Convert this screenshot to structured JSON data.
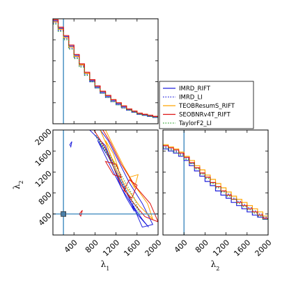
{
  "chart_data": [
    {
      "type": "line",
      "panel": "marginal-lambda1",
      "xlabel": "",
      "ylabel": "",
      "xlim": [
        0,
        2000
      ],
      "ylim": [
        0,
        1
      ],
      "injection_x": 200,
      "bin_edges": [
        0,
        100,
        200,
        300,
        400,
        500,
        600,
        700,
        800,
        900,
        1000,
        1100,
        1200,
        1300,
        1400,
        1500,
        1600,
        1700,
        1800,
        1900,
        2000
      ],
      "series": [
        {
          "name": "IMRD_RIFT",
          "color": "#1f1fdd",
          "dash": "solid",
          "values": [
            0.98,
            0.91,
            0.83,
            0.74,
            0.65,
            0.56,
            0.48,
            0.41,
            0.35,
            0.3,
            0.26,
            0.22,
            0.19,
            0.16,
            0.13,
            0.11,
            0.09,
            0.08,
            0.07,
            0.06
          ]
        },
        {
          "name": "IMRD_LI",
          "color": "#1f1fdd",
          "dash": "dotted",
          "values": [
            0.96,
            0.89,
            0.81,
            0.72,
            0.63,
            0.55,
            0.47,
            0.4,
            0.34,
            0.29,
            0.25,
            0.21,
            0.18,
            0.15,
            0.13,
            0.11,
            0.09,
            0.08,
            0.07,
            0.06
          ]
        },
        {
          "name": "TEOBResumS_RIFT",
          "color": "#ffa500",
          "dash": "solid",
          "values": [
            0.97,
            0.9,
            0.82,
            0.73,
            0.64,
            0.56,
            0.48,
            0.42,
            0.36,
            0.31,
            0.27,
            0.23,
            0.2,
            0.17,
            0.14,
            0.12,
            0.1,
            0.09,
            0.08,
            0.07
          ]
        },
        {
          "name": "SEOBNRv4T_RIFT",
          "color": "#dd1111",
          "dash": "solid",
          "values": [
            0.99,
            0.92,
            0.84,
            0.75,
            0.66,
            0.57,
            0.49,
            0.42,
            0.36,
            0.31,
            0.27,
            0.23,
            0.2,
            0.17,
            0.14,
            0.12,
            0.1,
            0.09,
            0.08,
            0.07
          ]
        },
        {
          "name": "TaylorF2_LI",
          "color": "#2ca02c",
          "dash": "dotted",
          "values": [
            0.95,
            0.88,
            0.8,
            0.71,
            0.62,
            0.54,
            0.46,
            0.4,
            0.34,
            0.29,
            0.25,
            0.21,
            0.18,
            0.15,
            0.13,
            0.11,
            0.09,
            0.08,
            0.07,
            0.06
          ]
        }
      ]
    },
    {
      "type": "line",
      "panel": "marginal-lambda2",
      "xlabel": "λ2",
      "ylabel": "",
      "xlim": [
        0,
        2000
      ],
      "ylim": [
        0,
        1
      ],
      "xticks": [
        400,
        800,
        1200,
        1600,
        2000
      ],
      "injection_x": 400,
      "bin_edges": [
        0,
        100,
        200,
        300,
        400,
        500,
        600,
        700,
        800,
        900,
        1000,
        1100,
        1200,
        1300,
        1400,
        1500,
        1600,
        1700,
        1800,
        1900,
        2000
      ],
      "series": [
        {
          "name": "IMRD_RIFT",
          "color": "#1f1fdd",
          "dash": "solid",
          "values": [
            0.82,
            0.8,
            0.78,
            0.75,
            0.71,
            0.66,
            0.61,
            0.56,
            0.51,
            0.47,
            0.42,
            0.38,
            0.35,
            0.31,
            0.28,
            0.25,
            0.22,
            0.19,
            0.17,
            0.15
          ]
        },
        {
          "name": "IMRD_LI",
          "color": "#1f1fdd",
          "dash": "dotted",
          "values": [
            0.84,
            0.82,
            0.8,
            0.77,
            0.73,
            0.68,
            0.64,
            0.59,
            0.55,
            0.5,
            0.46,
            0.42,
            0.39,
            0.35,
            0.32,
            0.29,
            0.26,
            0.23,
            0.2,
            0.17
          ]
        },
        {
          "name": "TEOBResumS_RIFT",
          "color": "#ffa500",
          "dash": "solid",
          "values": [
            0.86,
            0.84,
            0.82,
            0.79,
            0.75,
            0.71,
            0.66,
            0.62,
            0.57,
            0.53,
            0.49,
            0.45,
            0.41,
            0.37,
            0.34,
            0.31,
            0.28,
            0.25,
            0.22,
            0.18
          ]
        },
        {
          "name": "SEOBNRv4T_RIFT",
          "color": "#dd1111",
          "dash": "solid",
          "values": [
            0.85,
            0.83,
            0.81,
            0.78,
            0.74,
            0.69,
            0.64,
            0.59,
            0.55,
            0.5,
            0.46,
            0.42,
            0.38,
            0.34,
            0.31,
            0.28,
            0.25,
            0.22,
            0.19,
            0.16
          ]
        },
        {
          "name": "TaylorF2_LI",
          "color": "#2ca02c",
          "dash": "dotted",
          "values": [
            0.83,
            0.81,
            0.79,
            0.76,
            0.72,
            0.68,
            0.63,
            0.58,
            0.54,
            0.49,
            0.45,
            0.41,
            0.37,
            0.34,
            0.3,
            0.27,
            0.24,
            0.21,
            0.18,
            0.15
          ]
        }
      ]
    },
    {
      "type": "scatter",
      "panel": "joint-lambda1-lambda2",
      "xlabel": "λ1",
      "ylabel": "λ2",
      "xlim": [
        0,
        2000
      ],
      "ylim": [
        0,
        2000
      ],
      "xticks": [
        400,
        800,
        1200,
        1600,
        2000
      ],
      "yticks": [
        400,
        800,
        1200,
        1600,
        2000
      ],
      "injection": [
        200,
        400
      ],
      "series": [
        {
          "name": "IMRD_RIFT",
          "color": "#1f1fdd",
          "contours": [
            [
              [
                700,
                2000
              ],
              [
                1000,
                1700
              ],
              [
                1150,
                1300
              ],
              [
                1300,
                900
              ],
              [
                1550,
                500
              ],
              [
                1700,
                150
              ],
              [
                1900,
                200
              ],
              [
                1700,
                600
              ],
              [
                1450,
                1000
              ],
              [
                1250,
                1400
              ],
              [
                1050,
                1800
              ],
              [
                900,
                2000
              ]
            ],
            [
              [
                850,
                1800
              ],
              [
                1000,
                1500
              ],
              [
                1200,
                1100
              ],
              [
                1400,
                700
              ],
              [
                1550,
                450
              ],
              [
                1450,
                700
              ],
              [
                1250,
                1100
              ],
              [
                1050,
                1500
              ]
            ],
            [
              [
                1480,
                620
              ],
              [
                1700,
                300
              ],
              [
                1820,
                150
              ],
              [
                1600,
                400
              ]
            ],
            [
              [
                320,
                1720
              ],
              [
                360,
                1780
              ],
              [
                340,
                1680
              ]
            ]
          ]
        },
        {
          "name": "IMRD_LI",
          "color": "#1f1fdd",
          "dash": "dotted",
          "contours": [
            [
              [
                800,
                1900
              ],
              [
                1050,
                1550
              ],
              [
                1250,
                1150
              ],
              [
                1450,
                750
              ],
              [
                1600,
                400
              ],
              [
                1500,
                650
              ],
              [
                1300,
                1050
              ],
              [
                1100,
                1450
              ]
            ]
          ]
        },
        {
          "name": "TEOBResumS_RIFT",
          "color": "#ffa500",
          "contours": [
            [
              [
                900,
                2000
              ],
              [
                1050,
                1650
              ],
              [
                1200,
                1250
              ],
              [
                1400,
                900
              ],
              [
                1650,
                550
              ],
              [
                1900,
                300
              ],
              [
                1800,
                600
              ],
              [
                1550,
                950
              ],
              [
                1350,
                1300
              ],
              [
                1150,
                1700
              ],
              [
                1000,
                2000
              ]
            ],
            [
              [
                1000,
                1800
              ],
              [
                1100,
                1500
              ],
              [
                1250,
                1250
              ],
              [
                1150,
                1550
              ]
            ],
            [
              [
                1450,
                1100
              ],
              [
                1550,
                900
              ],
              [
                1620,
                1150
              ]
            ]
          ]
        },
        {
          "name": "SEOBNRv4T_RIFT",
          "color": "#dd1111",
          "contours": [
            [
              [
                780,
                2000
              ],
              [
                1000,
                1650
              ],
              [
                1150,
                1300
              ],
              [
                1300,
                950
              ],
              [
                1500,
                650
              ],
              [
                1750,
                350
              ],
              [
                2000,
                250
              ],
              [
                1850,
                600
              ],
              [
                1550,
                950
              ],
              [
                1300,
                1350
              ],
              [
                1100,
                1750
              ],
              [
                950,
                2000
              ]
            ],
            [
              [
                1000,
                1400
              ],
              [
                1150,
                1150
              ],
              [
                1300,
                1100
              ],
              [
                1200,
                1350
              ]
            ],
            [
              [
                1350,
                850
              ],
              [
                1500,
                700
              ],
              [
                1600,
                950
              ],
              [
                1450,
                1050
              ]
            ],
            [
              [
                500,
                400
              ],
              [
                560,
                470
              ],
              [
                530,
                360
              ]
            ]
          ]
        },
        {
          "name": "TaylorF2_LI",
          "color": "#2ca02c",
          "dash": "dotted",
          "contours": [
            [
              [
                820,
                1900
              ],
              [
                1050,
                1500
              ],
              [
                1250,
                1100
              ],
              [
                1450,
                750
              ],
              [
                1650,
                420
              ],
              [
                1550,
                700
              ],
              [
                1350,
                1050
              ],
              [
                1120,
                1450
              ]
            ]
          ]
        }
      ]
    }
  ],
  "legend": {
    "placement": "right of top panel",
    "items": [
      {
        "label": "IMRD_RIFT",
        "color": "#1f1fdd",
        "dash": "solid"
      },
      {
        "label": "IMRD_LI",
        "color": "#1f1fdd",
        "dash": "dotted"
      },
      {
        "label": "TEOBResumS_RIFT",
        "color": "#ffa500",
        "dash": "solid"
      },
      {
        "label": "SEOBNRv4T_RIFT",
        "color": "#dd1111",
        "dash": "solid"
      },
      {
        "label": "TaylorF2_LI",
        "color": "#2ca02c",
        "dash": "dotted"
      }
    ]
  },
  "injection_color": "#1f77b4"
}
